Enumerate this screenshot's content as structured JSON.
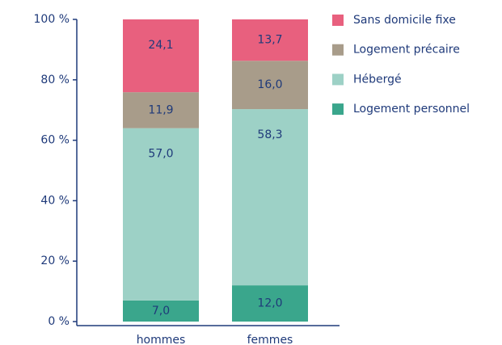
{
  "chart_data": {
    "type": "stacked_bar",
    "categories": [
      "hommes",
      "femmes"
    ],
    "series": [
      {
        "name": "Logement personnel",
        "color": "#3aa68c",
        "values": [
          7.0,
          12.0
        ],
        "value_labels": [
          "7,0",
          "12,0"
        ]
      },
      {
        "name": "Hébergé",
        "color": "#9dd1c6",
        "values": [
          57.0,
          58.3
        ],
        "value_labels": [
          "57,0",
          "58,3"
        ]
      },
      {
        "name": "Logement précaire",
        "color": "#a89c8a",
        "values": [
          11.9,
          16.0
        ],
        "value_labels": [
          "11,9",
          "16,0"
        ]
      },
      {
        "name": "Sans domicile fixe",
        "color": "#e8607e",
        "values": [
          24.1,
          13.7
        ],
        "value_labels": [
          "24,1",
          "13,7"
        ]
      }
    ],
    "ylim": [
      0,
      100
    ],
    "yticks": [
      {
        "value": 0,
        "label": "0 %"
      },
      {
        "value": 20,
        "label": "20 %"
      },
      {
        "value": 40,
        "label": "40 %"
      },
      {
        "value": 60,
        "label": "60 %"
      },
      {
        "value": 80,
        "label": "80 %"
      },
      {
        "value": 100,
        "label": "100 %"
      }
    ],
    "legend": "right"
  }
}
